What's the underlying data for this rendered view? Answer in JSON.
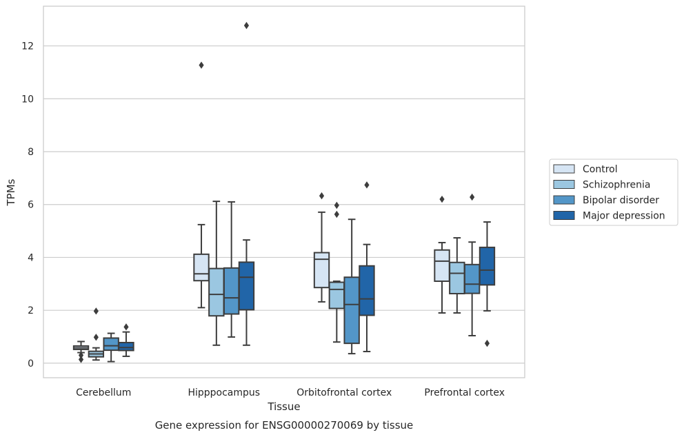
{
  "caption": "Gene expression for ENSG00000270069 by tissue",
  "chart_data": {
    "type": "boxplot",
    "xlabel": "Tissue",
    "ylabel": "TPMs",
    "ylim": [
      -0.55,
      13.5
    ],
    "yticks": [
      0,
      2,
      4,
      6,
      8,
      10,
      12
    ],
    "grid": "horizontal",
    "legend_position": "right",
    "categories": [
      "Cerebellum",
      "Hipppocampus",
      "Orbitofrontal cortex",
      "Prefrontal cortex"
    ],
    "series": [
      {
        "name": "Control",
        "color": "#d6e5f4",
        "boxes": [
          {
            "whislo": 0.4,
            "q1": 0.52,
            "med": 0.58,
            "q3": 0.65,
            "whishi": 0.82,
            "fliers": [
              0.14,
              0.3
            ]
          },
          {
            "whislo": 2.1,
            "q1": 3.12,
            "med": 3.38,
            "q3": 4.12,
            "whishi": 5.24,
            "fliers": [
              11.27
            ]
          },
          {
            "whislo": 2.32,
            "q1": 2.86,
            "med": 3.93,
            "q3": 4.18,
            "whishi": 5.71,
            "fliers": [
              6.33
            ]
          },
          {
            "whislo": 1.9,
            "q1": 3.1,
            "med": 3.86,
            "q3": 4.28,
            "whishi": 4.56,
            "fliers": [
              6.2
            ]
          }
        ]
      },
      {
        "name": "Schizophrenia",
        "color": "#9bc7e1",
        "boxes": [
          {
            "whislo": 0.12,
            "q1": 0.24,
            "med": 0.35,
            "q3": 0.45,
            "whishi": 0.58,
            "fliers": [
              0.98,
              1.97
            ]
          },
          {
            "whislo": 0.68,
            "q1": 1.79,
            "med": 2.6,
            "q3": 3.58,
            "whishi": 6.12,
            "fliers": []
          },
          {
            "whislo": 0.8,
            "q1": 2.07,
            "med": 2.79,
            "q3": 3.06,
            "whishi": 3.1,
            "fliers": [
              5.63,
              5.97
            ]
          },
          {
            "whislo": 1.9,
            "q1": 2.63,
            "med": 3.4,
            "q3": 3.81,
            "whishi": 4.74,
            "fliers": []
          }
        ]
      },
      {
        "name": "Bipolar disorder",
        "color": "#5396c8",
        "boxes": [
          {
            "whislo": 0.06,
            "q1": 0.49,
            "med": 0.66,
            "q3": 0.95,
            "whishi": 1.13,
            "fliers": []
          },
          {
            "whislo": 0.99,
            "q1": 1.86,
            "med": 2.47,
            "q3": 3.6,
            "whishi": 6.1,
            "fliers": []
          },
          {
            "whislo": 0.36,
            "q1": 0.75,
            "med": 2.22,
            "q3": 3.25,
            "whishi": 5.44,
            "fliers": []
          },
          {
            "whislo": 1.04,
            "q1": 2.64,
            "med": 2.99,
            "q3": 3.73,
            "whishi": 4.58,
            "fliers": [
              6.28
            ]
          }
        ]
      },
      {
        "name": "Major depression",
        "color": "#2165a8",
        "boxes": [
          {
            "whislo": 0.26,
            "q1": 0.48,
            "med": 0.59,
            "q3": 0.78,
            "whishi": 1.18,
            "fliers": [
              1.37
            ]
          },
          {
            "whislo": 0.68,
            "q1": 2.02,
            "med": 3.25,
            "q3": 3.82,
            "whishi": 4.66,
            "fliers": [
              12.77
            ]
          },
          {
            "whislo": 0.44,
            "q1": 1.81,
            "med": 2.43,
            "q3": 3.68,
            "whishi": 4.49,
            "fliers": [
              6.74
            ]
          },
          {
            "whislo": 1.98,
            "q1": 2.96,
            "med": 3.52,
            "q3": 4.38,
            "whishi": 5.34,
            "fliers": [
              0.75
            ]
          }
        ]
      }
    ]
  }
}
